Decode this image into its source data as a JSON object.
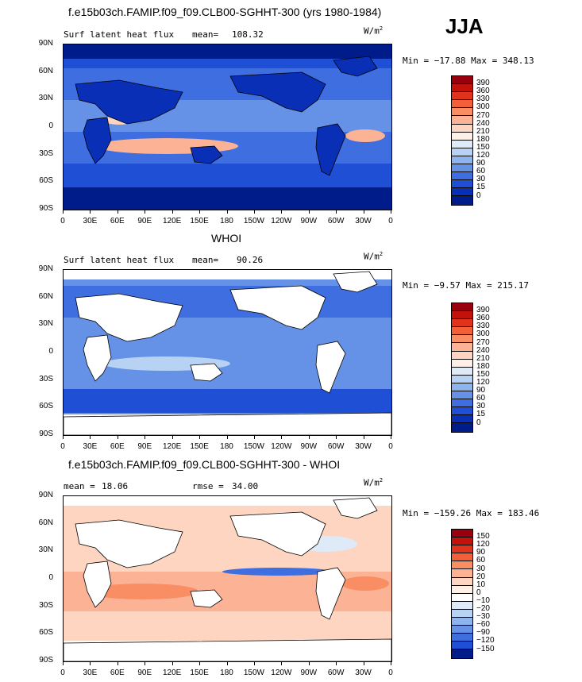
{
  "header": {
    "experiment_title": "f.e15b03ch.FAMIP.f09_f09.CLB00-SGHHT-300 (yrs 1980-1984)",
    "season": "JJA"
  },
  "axes": {
    "lat_labels": [
      "90N",
      "60N",
      "30N",
      "0",
      "30S",
      "60S",
      "90S"
    ],
    "lon_labels": [
      "0",
      "30E",
      "60E",
      "90E",
      "120E",
      "150E",
      "180",
      "150W",
      "120W",
      "90W",
      "60W",
      "30W",
      "0"
    ]
  },
  "panels": [
    {
      "title": "",
      "left_label": "Surf latent heat flux",
      "mean_label": "mean=",
      "mean_value": "108.32",
      "units": "W/m",
      "units_exp": "2",
      "minmax": "Min = −17.88 Max = 348.13",
      "colorbar_labels": [
        "390",
        "360",
        "330",
        "300",
        "270",
        "240",
        "210",
        "180",
        "150",
        "120",
        "90",
        "60",
        "30",
        "15",
        "0"
      ],
      "colorbar_colors": [
        "#99000d",
        "#c1120b",
        "#e0331c",
        "#f2603a",
        "#f98e64",
        "#fcb395",
        "#fdd5c0",
        "#fef0e6",
        "#dfeaf8",
        "#b8d2f3",
        "#8db4ec",
        "#6592e6",
        "#3e6edf",
        "#1f4fd5",
        "#0a2fb7",
        "#001b8a"
      ]
    },
    {
      "title": "WHOI",
      "left_label": "Surf latent heat flux",
      "mean_label": "mean=",
      "mean_value": "90.26",
      "units": "W/m",
      "units_exp": "2",
      "minmax": "Min =  −9.57 Max = 215.17",
      "colorbar_labels": [
        "390",
        "360",
        "330",
        "300",
        "270",
        "240",
        "210",
        "180",
        "150",
        "120",
        "90",
        "60",
        "30",
        "15",
        "0"
      ],
      "colorbar_colors": [
        "#99000d",
        "#c1120b",
        "#e0331c",
        "#f2603a",
        "#f98e64",
        "#fcb395",
        "#fdd5c0",
        "#fef0e6",
        "#dfeaf8",
        "#b8d2f3",
        "#8db4ec",
        "#6592e6",
        "#3e6edf",
        "#1f4fd5",
        "#0a2fb7",
        "#001b8a"
      ]
    },
    {
      "title": "f.e15b03ch.FAMIP.f09_f09.CLB00-SGHHT-300 - WHOI",
      "left_label": "mean =",
      "mean_label": "",
      "mean_value": "18.06",
      "rmse_label": "rmse =",
      "rmse_value": "34.00",
      "units": "W/m",
      "units_exp": "2",
      "minmax": "Min = −159.26 Max = 183.46",
      "colorbar_labels": [
        "150",
        "120",
        "90",
        "60",
        "30",
        "20",
        "10",
        "0",
        "−10",
        "−20",
        "−30",
        "−60",
        "−90",
        "−120",
        "−150"
      ],
      "colorbar_colors": [
        "#99000d",
        "#c1120b",
        "#e0331c",
        "#f2603a",
        "#f98e64",
        "#fcb395",
        "#fdd5c0",
        "#fef0e6",
        "#ffffff",
        "#dfeaf8",
        "#b8d2f3",
        "#8db4ec",
        "#6592e6",
        "#3e6edf",
        "#1f4fd5",
        "#001b8a"
      ]
    }
  ],
  "map_colors": {
    "land": "#ffffff",
    "coast": "#000000",
    "model_ocean": "#3e6edf",
    "model_land": "#1f4fd5",
    "obs_ocean": "#6592e6",
    "diff_ocean": "#fcb395"
  }
}
